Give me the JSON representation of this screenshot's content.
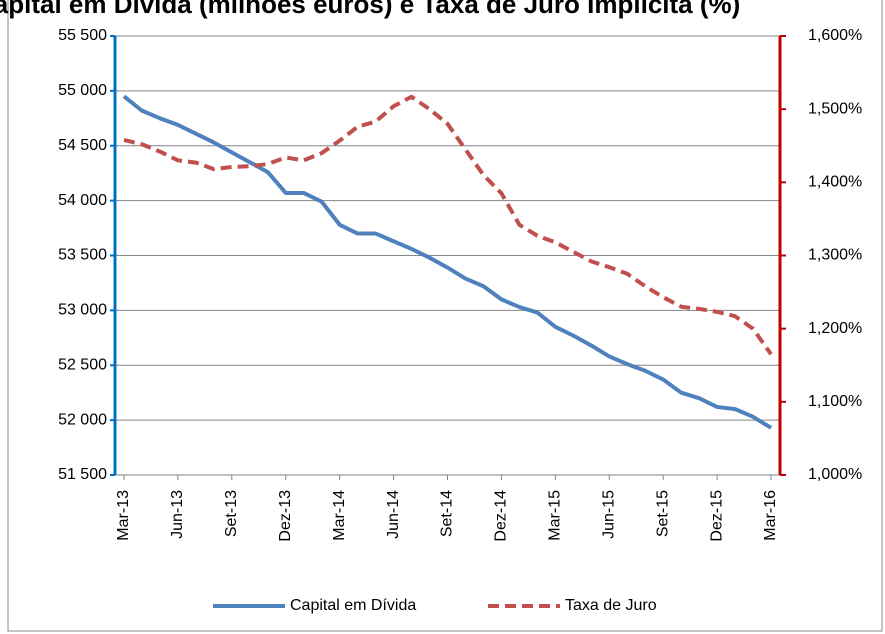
{
  "chart_data": {
    "type": "line",
    "title": "Capital em Dívida (milhões euros) e Taxa de Juro Implícita (%)",
    "categories": [
      "Mar-13",
      null,
      null,
      "Jun-13",
      null,
      null,
      "Set-13",
      null,
      null,
      "Dez-13",
      null,
      null,
      "Mar-14",
      null,
      null,
      "Jun-14",
      null,
      null,
      "Set-14",
      null,
      null,
      "Dez-14",
      null,
      null,
      "Mar-15",
      null,
      null,
      "Jun-15",
      null,
      null,
      "Set-15",
      null,
      null,
      "Dez-15",
      null,
      null,
      "Mar-16"
    ],
    "series": [
      {
        "name": "Capital em Dívida",
        "color": "#4f81bd",
        "axis": "y",
        "values": [
          54950,
          54820,
          54750,
          54690,
          54610,
          54530,
          54440,
          54350,
          54260,
          54070,
          54070,
          53990,
          53780,
          53700,
          53700,
          53630,
          53560,
          53480,
          53390,
          53290,
          53220,
          53100,
          53030,
          52980,
          52850,
          52770,
          52680,
          52580,
          52510,
          52450,
          52370,
          52250,
          52200,
          52120,
          52100,
          52030,
          51930
        ]
      },
      {
        "name": "Taxa de Juro",
        "color": "#c0504d",
        "axis": "y2",
        "dashed": true,
        "values": [
          1.458,
          1.452,
          1.442,
          1.43,
          1.427,
          1.418,
          1.421,
          1.422,
          1.425,
          1.434,
          1.43,
          1.44,
          1.457,
          1.476,
          1.483,
          1.504,
          1.517,
          1.5,
          1.48,
          1.445,
          1.41,
          1.385,
          1.342,
          1.327,
          1.318,
          1.305,
          1.292,
          1.284,
          1.275,
          1.258,
          1.243,
          1.23,
          1.227,
          1.223,
          1.217,
          1.2,
          1.165
        ]
      }
    ],
    "ylim": [
      51500,
      55500
    ],
    "yticks": [
      {
        "value": 51500,
        "label": "51 500"
      },
      {
        "value": 52000,
        "label": "52 000"
      },
      {
        "value": 52500,
        "label": "52 500"
      },
      {
        "value": 53000,
        "label": "53 000"
      },
      {
        "value": 53500,
        "label": "53 500"
      },
      {
        "value": 54000,
        "label": "54 000"
      },
      {
        "value": 54500,
        "label": "54 500"
      },
      {
        "value": 55000,
        "label": "55 000"
      },
      {
        "value": 55500,
        "label": "55 500"
      }
    ],
    "y2lim": [
      1.0,
      1.6
    ],
    "y2ticks": [
      {
        "value": 1.0,
        "label": "1,000%"
      },
      {
        "value": 1.1,
        "label": "1,100%"
      },
      {
        "value": 1.2,
        "label": "1,200%"
      },
      {
        "value": 1.3,
        "label": "1,300%"
      },
      {
        "value": 1.4,
        "label": "1,400%"
      },
      {
        "value": 1.5,
        "label": "1,500%"
      },
      {
        "value": 1.6,
        "label": "1,600%"
      }
    ],
    "yaxis_color": "#0070c0",
    "y2axis_color": "#c00000",
    "grid": true,
    "legend": "bottom"
  }
}
